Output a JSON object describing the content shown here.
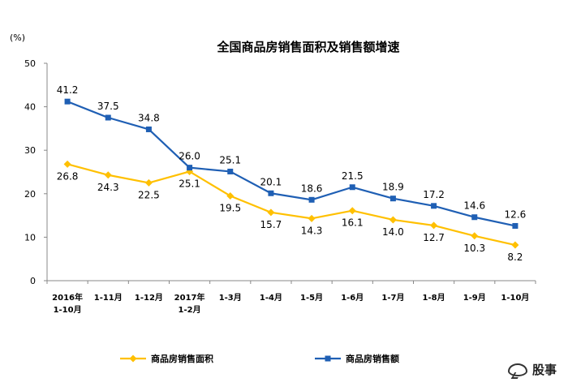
{
  "chart_data": {
    "type": "line",
    "title": "全国商品房销售面积及销售额增速",
    "unit_label": "(%)",
    "categories": [
      [
        "2016年",
        "1-10月"
      ],
      [
        "1-11月"
      ],
      [
        "1-12月"
      ],
      [
        "2017年",
        "1-2月"
      ],
      [
        "1-3月"
      ],
      [
        "1-4月"
      ],
      [
        "1-5月"
      ],
      [
        "1-6月"
      ],
      [
        "1-7月"
      ],
      [
        "1-8月"
      ],
      [
        "1-9月"
      ],
      [
        "1-10月"
      ]
    ],
    "ylim": [
      0,
      50
    ],
    "yticks": [
      0,
      10,
      20,
      30,
      40,
      50
    ],
    "grid": false,
    "legend_position": "bottom",
    "series": [
      {
        "name": "商品房销售面积",
        "color": "#FFC000",
        "marker": "diamond",
        "label_position": "below",
        "values": [
          26.8,
          24.3,
          22.5,
          25.1,
          19.5,
          15.7,
          14.3,
          16.1,
          14.0,
          12.7,
          10.3,
          8.2
        ],
        "labels": [
          "26.8",
          "24.3",
          "22.5",
          "25.1",
          "19.5",
          "15.7",
          "14.3",
          "16.1",
          "14.0",
          "12.7",
          "10.3",
          "8.2"
        ]
      },
      {
        "name": "商品房销售额",
        "color": "#1F5FB4",
        "marker": "square",
        "label_position": "above",
        "values": [
          41.2,
          37.5,
          34.8,
          26.0,
          25.1,
          20.1,
          18.6,
          21.5,
          18.9,
          17.2,
          14.6,
          12.6
        ],
        "labels": [
          "41.2",
          "37.5",
          "34.8",
          "26.0",
          "25.1",
          "20.1",
          "18.6",
          "21.5",
          "18.9",
          "17.2",
          "14.6",
          "12.6"
        ]
      }
    ]
  },
  "watermark": {
    "text": "股事",
    "icon": "chat-bubble-icon"
  }
}
